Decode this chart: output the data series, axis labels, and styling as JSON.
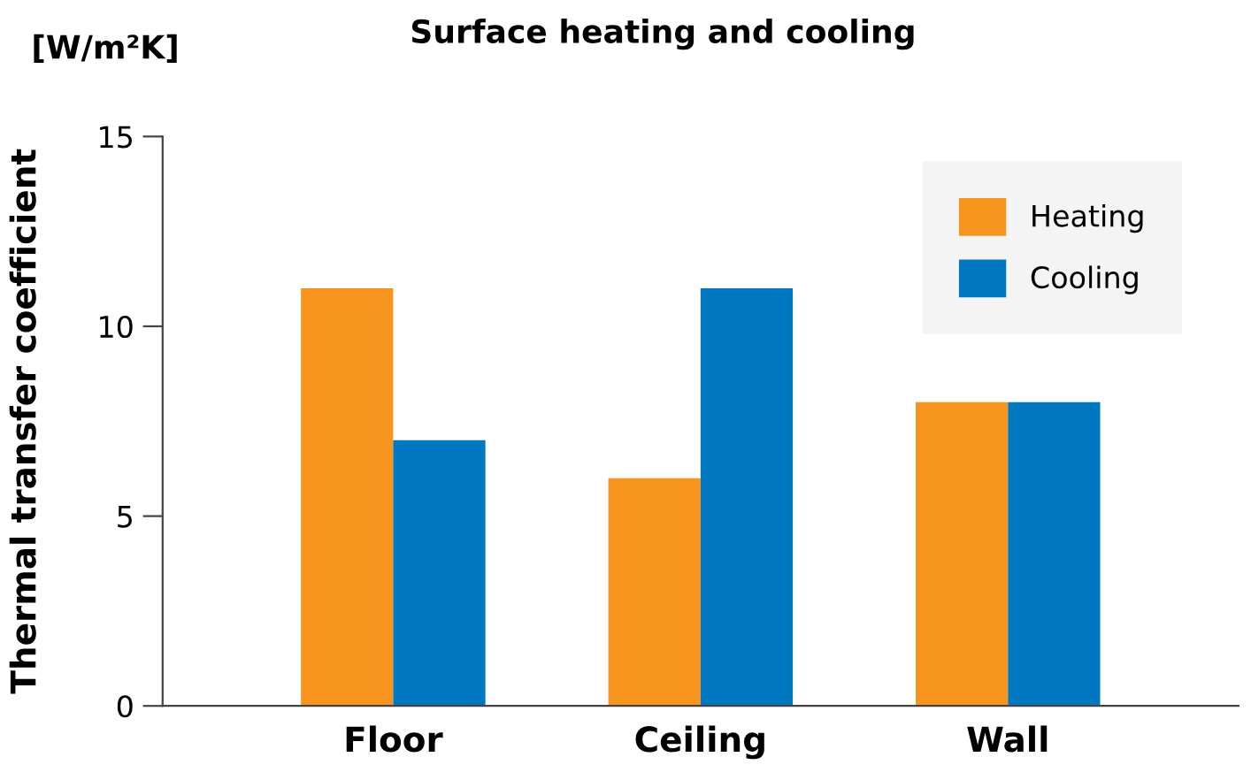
{
  "chart_data": {
    "type": "bar",
    "title": "Surface heating and cooling",
    "ylabel": "Thermal transfer coefficient",
    "annotations": [
      "[W/m²K]"
    ],
    "categories": [
      "Floor",
      "Ceiling",
      "Wall"
    ],
    "series": [
      {
        "name": "Heating",
        "color": "#f7941d",
        "values": [
          11,
          6,
          8
        ]
      },
      {
        "name": "Cooling",
        "color": "#0078c1",
        "values": [
          7,
          11,
          8
        ]
      }
    ],
    "ylim": [
      0,
      15
    ],
    "yticks": [
      0,
      5,
      10,
      15
    ],
    "grid": false,
    "legend": "top right"
  }
}
